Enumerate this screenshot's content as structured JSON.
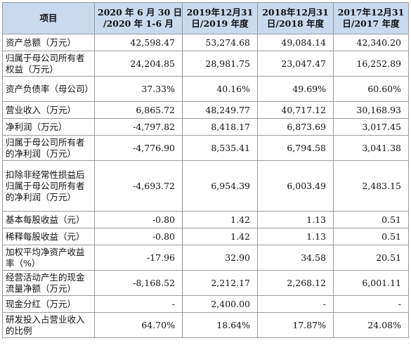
{
  "table": {
    "header": {
      "item": "项目",
      "columns": [
        [
          "2020 年 6 月 30 日",
          "/2020 年 1-6 月"
        ],
        [
          "2019年12月31",
          "日/2019 年度"
        ],
        [
          "2018年12月31",
          "日/2018 年度"
        ],
        [
          "2017年12月31",
          "日/2017 年度"
        ]
      ]
    },
    "rows": [
      {
        "label": "资产总额（万元）",
        "values": [
          "42,598.47",
          "53,274.68",
          "49,084.14",
          "42,340.20"
        ]
      },
      {
        "label": "归属于母公司所有者权益（万元）",
        "values": [
          "24,204.85",
          "28,981.75",
          "23,047.47",
          "16,252.89"
        ]
      },
      {
        "label": "资产负债率（母公司）",
        "values": [
          "37.33%",
          "40.16%",
          "49.69%",
          "60.60%"
        ]
      },
      {
        "label": "营业收入（万元）",
        "values": [
          "6,865.72",
          "48,249.77",
          "40,717.12",
          "30,168.93"
        ]
      },
      {
        "label": "净利润（万元）",
        "values": [
          "-4,797.82",
          "8,418.17",
          "6,873.69",
          "3,017.45"
        ]
      },
      {
        "label": "归属于母公司所有者的净利润（万元）",
        "values": [
          "-4,776.90",
          "8,535.41",
          "6,794.58",
          "3,041.38"
        ]
      },
      {
        "label": "扣除非经常性损益后归属于母公司所有者的净利润（万元）",
        "values": [
          "-4,693.72",
          "6,954.39",
          "6,003.49",
          "2,483.15"
        ]
      },
      {
        "label": "基本每股收益（元）",
        "values": [
          "-0.80",
          "1.42",
          "1.13",
          "0.51"
        ]
      },
      {
        "label": "稀释每股收益（元）",
        "values": [
          "-0.80",
          "1.42",
          "1.13",
          "0.51"
        ]
      },
      {
        "label": "加权平均净资产收益率（%）",
        "values": [
          "-17.96",
          "32.90",
          "34.58",
          "20.51"
        ]
      },
      {
        "label": "经营活动产生的现金流量净额（万元）",
        "values": [
          "-8,168.52",
          "2,212.17",
          "2,268.12",
          "6,001.11"
        ]
      },
      {
        "label": "现金分红（万元）",
        "values": [
          "-",
          "2,400.00",
          "-",
          "-"
        ]
      },
      {
        "label": "研发投入占营业收入的比例",
        "values": [
          "64.70%",
          "18.64%",
          "17.87%",
          "24.08%"
        ]
      }
    ]
  }
}
